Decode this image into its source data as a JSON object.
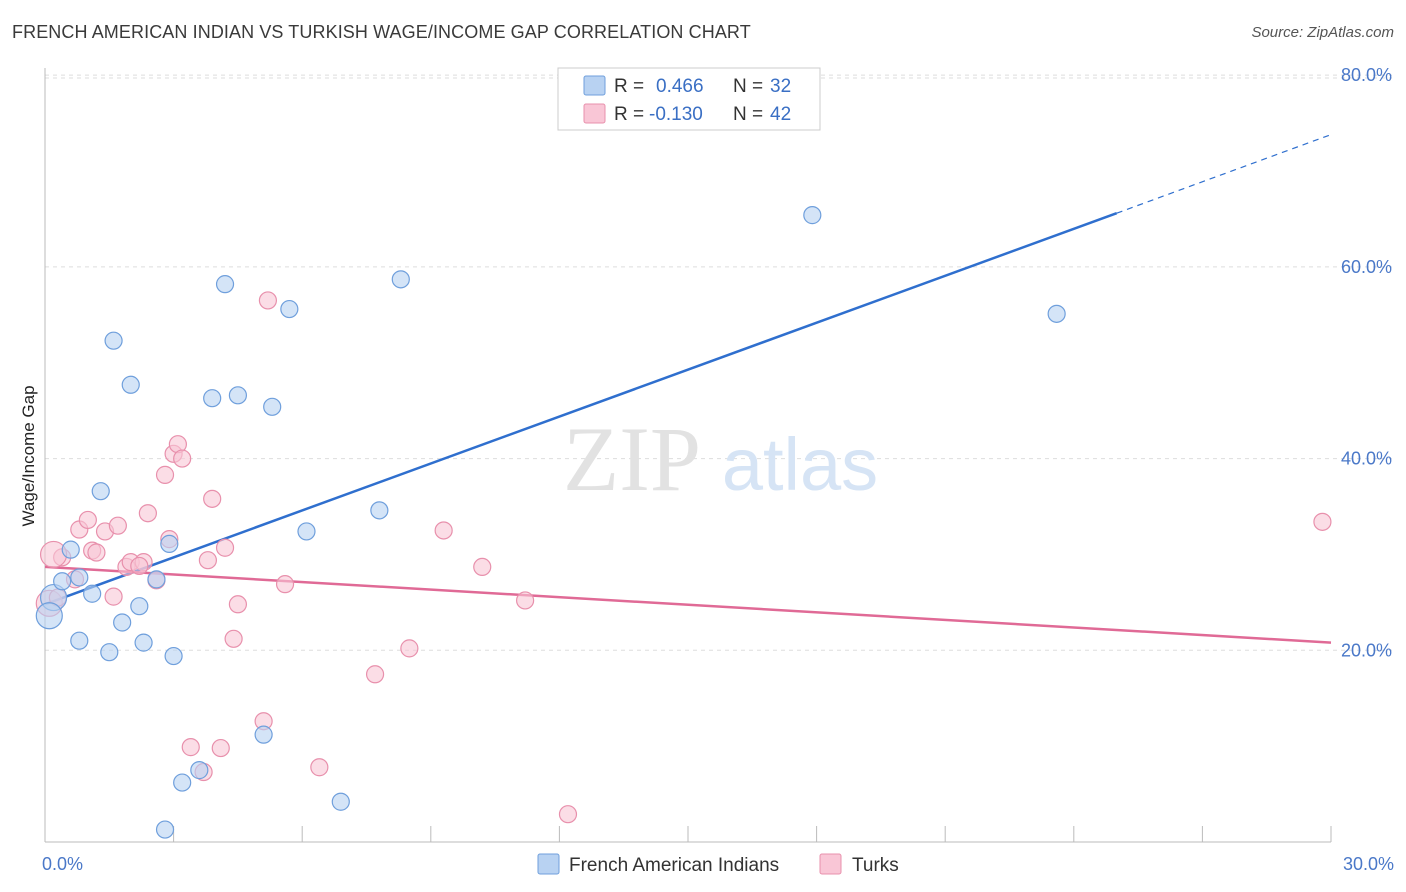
{
  "header": {
    "title": "FRENCH AMERICAN INDIAN VS TURKISH WAGE/INCOME GAP CORRELATION CHART",
    "source": "Source: ZipAtlas.com"
  },
  "watermark": {
    "zip": "ZIP",
    "atlas": "atlas"
  },
  "chart_data": {
    "type": "scatter",
    "title": "FRENCH AMERICAN INDIAN VS TURKISH WAGE/INCOME GAP CORRELATION CHART",
    "xlabel": "",
    "ylabel": "Wage/Income Gap",
    "xlim": [
      0,
      30
    ],
    "ylim": [
      0,
      82
    ],
    "x_tick_labels": [
      {
        "value": 0,
        "label": "0.0%"
      },
      {
        "value": 30,
        "label": "30.0%"
      }
    ],
    "y_tick_labels": [
      {
        "value": 20,
        "label": "20.0%"
      },
      {
        "value": 40,
        "label": "40.0%"
      },
      {
        "value": 60,
        "label": "60.0%"
      },
      {
        "value": 80,
        "label": "80.0%"
      }
    ],
    "colors": {
      "blue_fill": "#b8d2f2",
      "blue_stroke": "#6f9fdc",
      "blue_line": "#2f6fce",
      "pink_fill": "#f9c6d6",
      "pink_stroke": "#e890ac",
      "pink_line": "#e06a96",
      "grid": "#dddddd",
      "tick_text": "#4a78c8"
    },
    "legend": {
      "r_label": "R =",
      "n_label": "N =",
      "entries": [
        {
          "r": "0.466",
          "n": "32"
        },
        {
          "r": "-0.130",
          "n": "42"
        }
      ]
    },
    "series": [
      {
        "name": "French American Indians",
        "trend": {
          "x0": 0,
          "y0": 24.8,
          "x1": 25,
          "y1": 65.6,
          "dash_to_x": 30,
          "dash_to_y": 73.8
        },
        "points": [
          [
            0.2,
            25.5
          ],
          [
            0.6,
            30.5
          ],
          [
            0.4,
            27.2
          ],
          [
            0.8,
            27.6
          ],
          [
            1.1,
            25.9
          ],
          [
            0.8,
            21.0
          ],
          [
            1.5,
            19.8
          ],
          [
            1.8,
            22.9
          ],
          [
            2.2,
            24.6
          ],
          [
            2.3,
            20.8
          ],
          [
            3.0,
            19.4
          ],
          [
            2.6,
            27.4
          ],
          [
            2.9,
            31.1
          ],
          [
            1.3,
            36.6
          ],
          [
            1.6,
            52.3
          ],
          [
            2.0,
            47.7
          ],
          [
            3.9,
            46.3
          ],
          [
            4.5,
            46.6
          ],
          [
            5.3,
            45.4
          ],
          [
            4.2,
            58.2
          ],
          [
            5.7,
            55.6
          ],
          [
            6.1,
            32.4
          ],
          [
            3.6,
            7.5
          ],
          [
            3.2,
            6.2
          ],
          [
            2.8,
            1.3
          ],
          [
            5.1,
            11.2
          ],
          [
            6.9,
            4.2
          ],
          [
            7.8,
            34.6
          ],
          [
            8.3,
            58.7
          ],
          [
            17.9,
            65.4
          ],
          [
            23.6,
            55.1
          ],
          [
            0.1,
            23.6
          ]
        ]
      },
      {
        "name": "Turks",
        "trend": {
          "x0": 0,
          "y0": 28.7,
          "x1": 30,
          "y1": 20.8
        },
        "points": [
          [
            0.1,
            24.9
          ],
          [
            0.3,
            25.5
          ],
          [
            0.4,
            29.7
          ],
          [
            0.7,
            27.4
          ],
          [
            0.8,
            32.6
          ],
          [
            1.0,
            33.6
          ],
          [
            1.1,
            30.4
          ],
          [
            1.2,
            30.2
          ],
          [
            1.4,
            32.4
          ],
          [
            1.6,
            25.6
          ],
          [
            1.7,
            33.0
          ],
          [
            1.9,
            28.7
          ],
          [
            2.0,
            29.2
          ],
          [
            2.3,
            29.2
          ],
          [
            2.4,
            34.3
          ],
          [
            2.6,
            27.3
          ],
          [
            2.8,
            38.3
          ],
          [
            3.0,
            40.5
          ],
          [
            3.1,
            41.5
          ],
          [
            3.2,
            40.0
          ],
          [
            2.9,
            31.6
          ],
          [
            3.8,
            29.4
          ],
          [
            3.9,
            35.8
          ],
          [
            4.2,
            30.7
          ],
          [
            4.4,
            21.2
          ],
          [
            4.5,
            24.8
          ],
          [
            5.2,
            56.5
          ],
          [
            5.6,
            26.9
          ],
          [
            3.4,
            9.9
          ],
          [
            4.1,
            9.8
          ],
          [
            3.7,
            7.3
          ],
          [
            5.1,
            12.6
          ],
          [
            6.4,
            7.8
          ],
          [
            7.7,
            17.5
          ],
          [
            8.5,
            20.2
          ],
          [
            9.3,
            32.5
          ],
          [
            10.2,
            28.7
          ],
          [
            11.2,
            25.2
          ],
          [
            12.2,
            2.9
          ],
          [
            29.8,
            33.4
          ],
          [
            0.2,
            30.0
          ],
          [
            2.2,
            28.8
          ]
        ]
      }
    ]
  }
}
